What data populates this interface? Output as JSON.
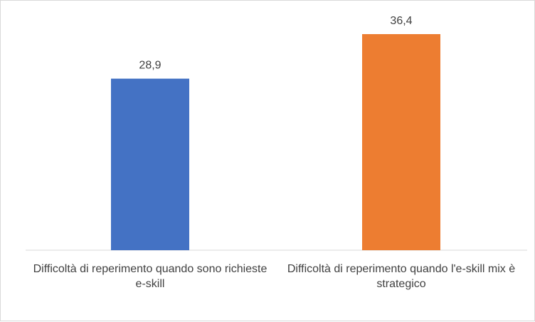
{
  "chart_data": {
    "type": "bar",
    "categories": [
      "Difficoltà di reperimento quando sono richieste e-skill",
      "Difficoltà di reperimento quando l'e-skill mix è strategico"
    ],
    "values": [
      28.9,
      36.4
    ],
    "data_labels": [
      "28,9",
      "36,4"
    ],
    "colors": [
      "#4472c4",
      "#ed7d31"
    ],
    "ylim": [
      0,
      40
    ],
    "grid": false,
    "legend": "none",
    "title": "",
    "xlabel": "",
    "ylabel": ""
  }
}
